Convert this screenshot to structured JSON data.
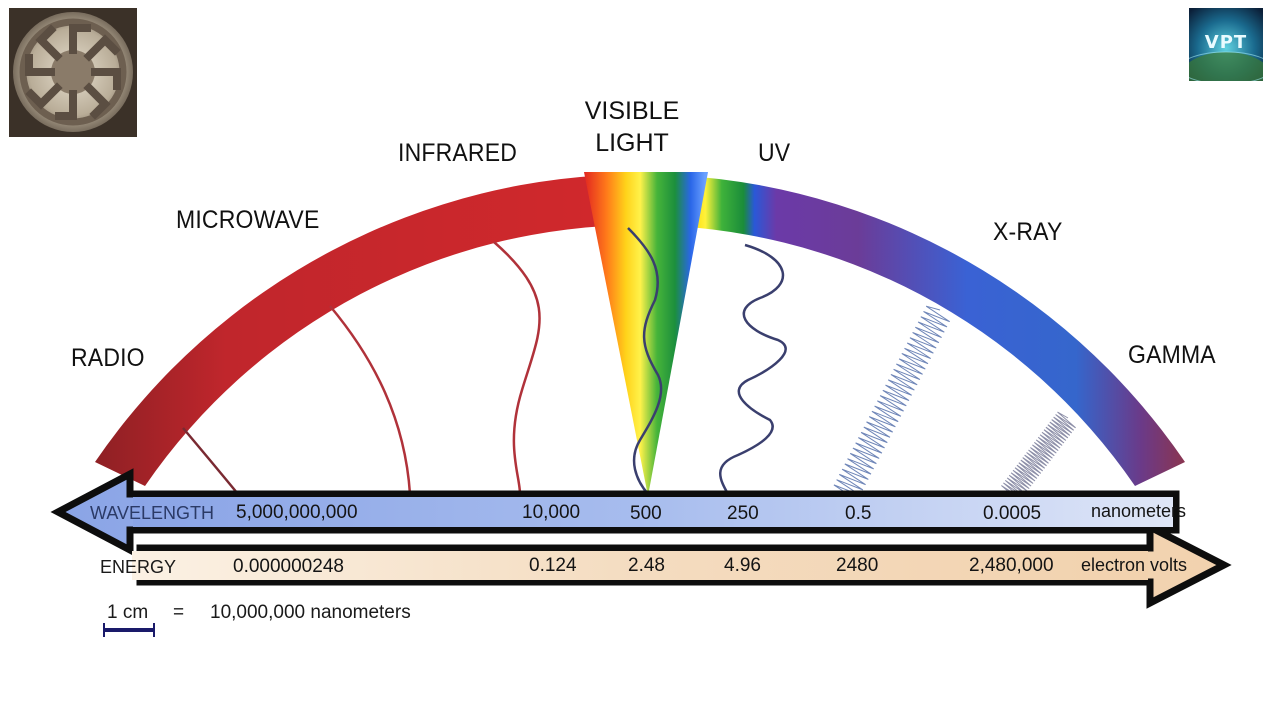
{
  "diagram": {
    "bands": {
      "radio": "RADIO",
      "microwave": "MICROWAVE",
      "infrared": "INFRARED",
      "visible_line1": "VISIBLE",
      "visible_line2": "LIGHT",
      "uv": "UV",
      "xray": "X-RAY",
      "gamma": "GAMMA"
    },
    "wavelength": {
      "label": "WAVELENGTH",
      "values": [
        "5,000,000,000",
        "10,000",
        "500",
        "250",
        "0.5",
        "0.0005"
      ],
      "unit": "nanometers"
    },
    "energy": {
      "label": "ENERGY",
      "values": [
        "0.000000248",
        "0.124",
        "2.48",
        "4.96",
        "2480",
        "2,480,000"
      ],
      "unit": "electron volts"
    },
    "scale": {
      "length": "1 cm",
      "equals": "=",
      "value": "10,000,000 nanometers"
    },
    "logos": {
      "right_text": "VPT",
      "left_icon": "sun-wheel-emblem-icon",
      "right_icon": "vpt-globe-logo-icon"
    },
    "colors": {
      "wavelength_bar": "#a9bde8",
      "energy_bar": "#f3dcc2",
      "arc_red": "#c22a2f",
      "arc_purple": "#6a3c94",
      "arc_blue": "#3a6ad6"
    }
  }
}
